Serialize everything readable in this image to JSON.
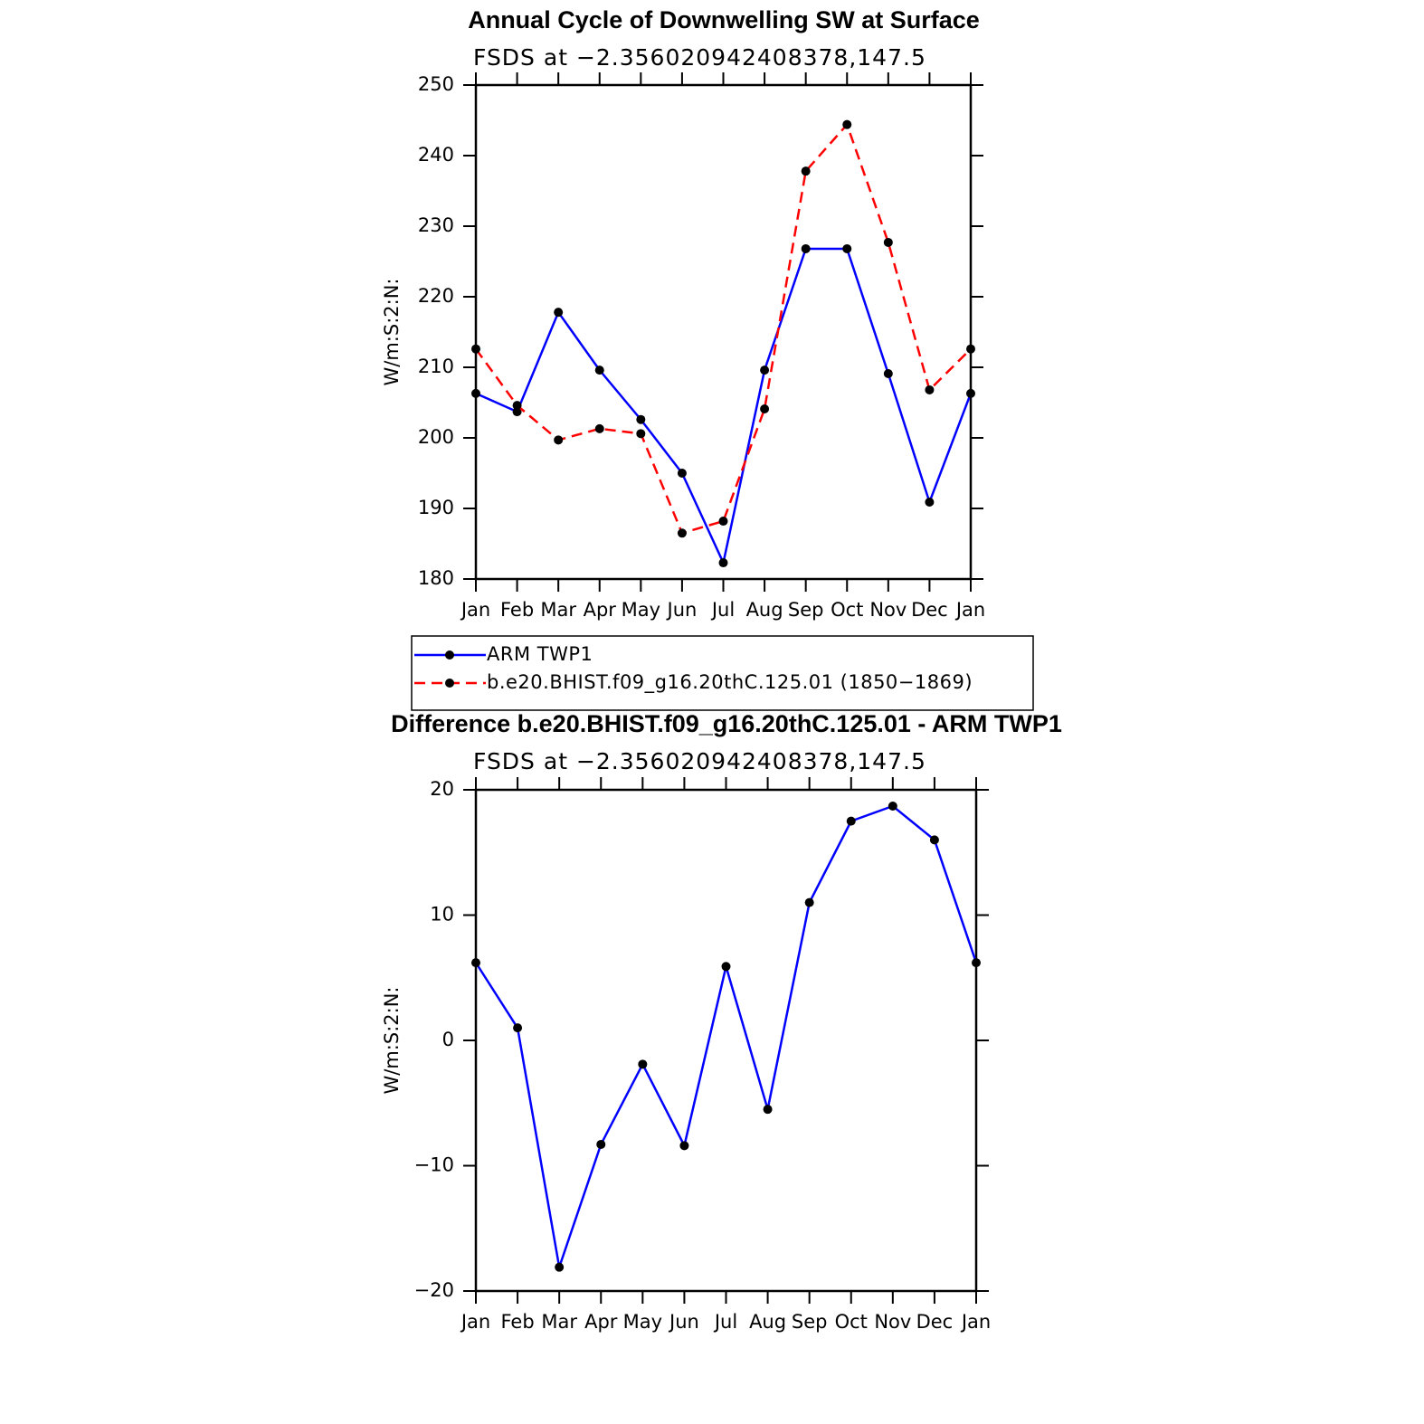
{
  "chart_data": [
    {
      "type": "line",
      "title": "Annual Cycle of Downwelling SW at Surface",
      "subtitle": "FSDS at −2.356020942408378,147.5",
      "y_label": "W/m:S:2:N:",
      "categories": [
        "Jan",
        "Feb",
        "Mar",
        "Apr",
        "May",
        "Jun",
        "Jul",
        "Aug",
        "Sep",
        "Oct",
        "Nov",
        "Dec",
        "Jan"
      ],
      "series": [
        {
          "name": "ARM TWP1",
          "color": "#0000ff",
          "linestyle": "solid",
          "values": [
            206.3,
            203.7,
            217.8,
            209.6,
            202.6,
            195.0,
            182.3,
            209.6,
            226.8,
            226.8,
            209.1,
            190.9,
            206.3
          ]
        },
        {
          "name": "b.e20.BHIST.f09_g16.20thC.125.01 (1850−1869)",
          "color": "#ff0000",
          "linestyle": "dashed",
          "values": [
            212.6,
            204.6,
            199.7,
            201.3,
            200.6,
            186.5,
            188.2,
            204.1,
            237.8,
            244.4,
            227.7,
            206.8,
            212.6
          ]
        }
      ],
      "ylim": [
        180,
        250
      ],
      "yticks": [
        180,
        190,
        200,
        210,
        220,
        230,
        240,
        250
      ],
      "marker_color": "#000000",
      "legend": "below"
    },
    {
      "type": "line",
      "title": "Difference b.e20.BHIST.f09_g16.20thC.125.01 - ARM TWP1",
      "subtitle": "FSDS at −2.356020942408378,147.5",
      "y_label": "W/m:S:2:N:",
      "categories": [
        "Jan",
        "Feb",
        "Mar",
        "Apr",
        "May",
        "Jun",
        "Jul",
        "Aug",
        "Sep",
        "Oct",
        "Nov",
        "Dec",
        "Jan"
      ],
      "color": "#0000ff",
      "values": [
        6.2,
        1.0,
        -18.1,
        -8.3,
        -1.9,
        -8.4,
        5.9,
        -5.5,
        11.0,
        17.5,
        18.7,
        16.0,
        6.2
      ],
      "ylim": [
        -20,
        20
      ],
      "yticks": [
        {
          "value": -20,
          "label": "−20"
        },
        {
          "value": -10,
          "label": "−10"
        },
        0,
        10,
        20
      ],
      "marker_color": "#000000"
    }
  ]
}
